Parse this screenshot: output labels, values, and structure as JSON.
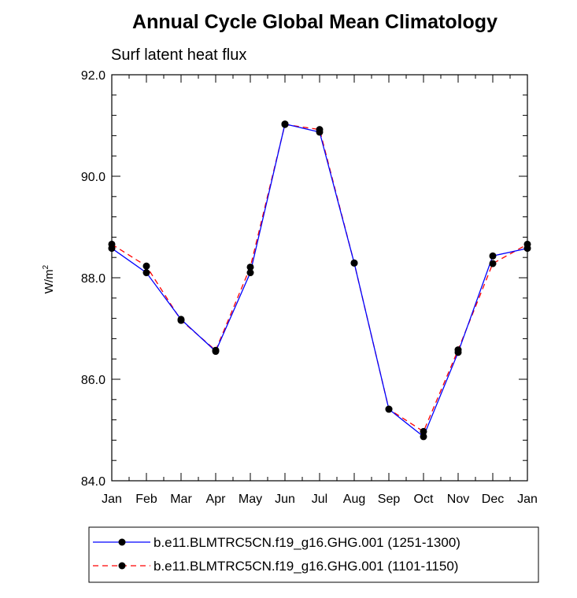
{
  "chart_data": {
    "type": "line",
    "title": "Annual Cycle Global Mean Climatology",
    "subtitle": "Surf latent heat flux",
    "xlabel": "",
    "ylabel": "W/m",
    "ylabel_superscript": "2",
    "categories": [
      "Jan",
      "Feb",
      "Mar",
      "Apr",
      "May",
      "Jun",
      "Jul",
      "Aug",
      "Sep",
      "Oct",
      "Nov",
      "Dec",
      "Jan"
    ],
    "ylim": [
      84.0,
      92.0
    ],
    "yticks": [
      "84.0",
      "86.0",
      "88.0",
      "90.0",
      "92.0"
    ],
    "grid": false,
    "legend_position": "bottom",
    "series": [
      {
        "name": "b.e11.BLMTRC5CN.f19_g16.GHG.001 (1251-1300)",
        "color": "#0000ff",
        "dash": "solid",
        "values": [
          88.58,
          88.1,
          87.18,
          86.55,
          88.1,
          91.03,
          90.87,
          88.29,
          85.41,
          84.87,
          86.53,
          88.43,
          88.58
        ]
      },
      {
        "name": "b.e11.BLMTRC5CN.f19_g16.GHG.001 (1101-1150)",
        "color": "#ff0000",
        "dash": "dashed",
        "values": [
          88.66,
          88.23,
          87.16,
          86.57,
          88.21,
          91.02,
          90.92,
          88.29,
          85.41,
          84.97,
          86.58,
          88.28,
          88.66
        ]
      }
    ]
  }
}
